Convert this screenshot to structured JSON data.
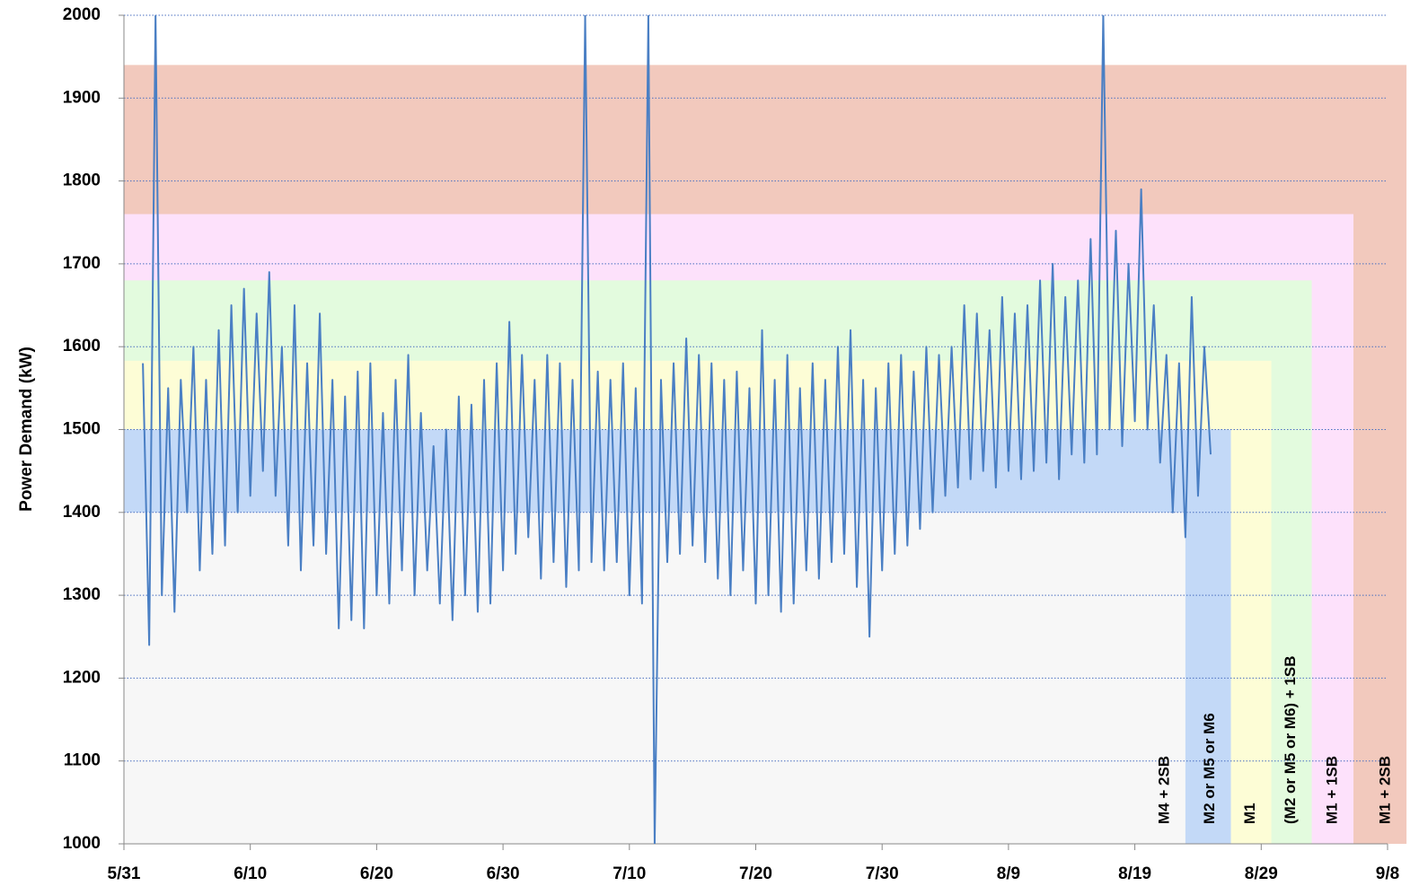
{
  "chart_data": {
    "type": "line",
    "y_label": "Power Demand (kW)",
    "xlim": [
      0,
      100
    ],
    "xticks": [
      {
        "value": 0,
        "label": "5/31"
      },
      {
        "value": 10,
        "label": "6/10"
      },
      {
        "value": 20,
        "label": "6/20"
      },
      {
        "value": 30,
        "label": "6/30"
      },
      {
        "value": 40,
        "label": "7/10"
      },
      {
        "value": 50,
        "label": "7/20"
      },
      {
        "value": 60,
        "label": "7/30"
      },
      {
        "value": 70,
        "label": "8/9"
      },
      {
        "value": 80,
        "label": "8/19"
      },
      {
        "value": 90,
        "label": "8/29"
      },
      {
        "value": 100,
        "label": "9/8"
      }
    ],
    "ylim": [
      1000,
      2000
    ],
    "yticks": [
      1000,
      1100,
      1200,
      1300,
      1400,
      1500,
      1600,
      1700,
      1800,
      1900,
      2000
    ],
    "grid": true,
    "zones": [
      {
        "label": "M1 + 2SB",
        "upper": 1940,
        "end": 101.5,
        "color": "#f2c9bd"
      },
      {
        "label": "M1 + 1SB",
        "upper": 1760,
        "end": 97.3,
        "color": "#fde1fb"
      },
      {
        "label": "(M2 or M5 or M6) + 1SB",
        "upper": 1680,
        "end": 94.0,
        "color": "#e3fbde"
      },
      {
        "label": "M1",
        "upper": 1583,
        "end": 90.8,
        "color": "#fdfdd6"
      },
      {
        "label": "M2 or M5 or M6",
        "upper": 1500,
        "end": 87.6,
        "color": "#c3d9f7"
      },
      {
        "label": "M4 + 2SB",
        "upper": 1400,
        "end": 84.0,
        "color": "#f7f7f7"
      }
    ],
    "series": [
      {
        "color": "#4a7fc4",
        "x": [
          1.5,
          2,
          2.5,
          3,
          3.5,
          4,
          4.5,
          5,
          5.5,
          6,
          6.5,
          7,
          7.5,
          8,
          8.5,
          9,
          9.5,
          10,
          10.5,
          11,
          11.5,
          12,
          12.5,
          13,
          13.5,
          14,
          14.5,
          15,
          15.5,
          16,
          16.5,
          17,
          17.5,
          18,
          18.5,
          19,
          19.5,
          20,
          20.5,
          21,
          21.5,
          22,
          22.5,
          23,
          23.5,
          24,
          24.5,
          25,
          25.5,
          26,
          26.5,
          27,
          27.5,
          28,
          28.5,
          29,
          29.5,
          30,
          30.5,
          31,
          31.5,
          32,
          32.5,
          33,
          33.5,
          34,
          34.5,
          35,
          35.5,
          36,
          36.5,
          37,
          37.5,
          38,
          38.5,
          39,
          39.5,
          40,
          40.5,
          41,
          41.5,
          42,
          42.5,
          43,
          43.5,
          44,
          44.5,
          45,
          45.5,
          46,
          46.5,
          47,
          47.5,
          48,
          48.5,
          49,
          49.5,
          50,
          50.5,
          51,
          51.5,
          52,
          52.5,
          53,
          53.5,
          54,
          54.5,
          55,
          55.5,
          56,
          56.5,
          57,
          57.5,
          58,
          58.5,
          59,
          59.5,
          60,
          60.5,
          61,
          61.5,
          62,
          62.5,
          63,
          63.5,
          64,
          64.5,
          65,
          65.5,
          66,
          66.5,
          67,
          67.5,
          68,
          68.5,
          69,
          69.5,
          70,
          70.5,
          71,
          71.5,
          72,
          72.5,
          73,
          73.5,
          74,
          74.5,
          75,
          75.5,
          76,
          76.5,
          77,
          77.5,
          78,
          78.5,
          79,
          79.5,
          80,
          80.5,
          81,
          81.5,
          82,
          82.5,
          83,
          83.5,
          84,
          84.5,
          85,
          85.5,
          86
        ],
        "values": [
          1580,
          1240,
          2000,
          1300,
          1550,
          1280,
          1560,
          1400,
          1600,
          1330,
          1560,
          1350,
          1620,
          1360,
          1650,
          1400,
          1670,
          1420,
          1640,
          1450,
          1690,
          1420,
          1600,
          1360,
          1650,
          1330,
          1580,
          1360,
          1640,
          1350,
          1560,
          1260,
          1540,
          1270,
          1570,
          1260,
          1580,
          1300,
          1520,
          1290,
          1560,
          1330,
          1590,
          1300,
          1520,
          1330,
          1480,
          1290,
          1500,
          1270,
          1540,
          1300,
          1530,
          1280,
          1560,
          1290,
          1580,
          1330,
          1630,
          1350,
          1590,
          1370,
          1560,
          1320,
          1590,
          1340,
          1580,
          1310,
          1560,
          1330,
          2000,
          1340,
          1570,
          1330,
          1560,
          1340,
          1580,
          1300,
          1550,
          1290,
          2000,
          1000,
          1560,
          1340,
          1580,
          1350,
          1610,
          1360,
          1590,
          1340,
          1580,
          1320,
          1560,
          1300,
          1570,
          1330,
          1550,
          1290,
          1620,
          1300,
          1560,
          1280,
          1590,
          1290,
          1550,
          1330,
          1580,
          1320,
          1560,
          1340,
          1600,
          1350,
          1620,
          1310,
          1560,
          1250,
          1550,
          1330,
          1580,
          1350,
          1590,
          1360,
          1570,
          1380,
          1600,
          1400,
          1590,
          1420,
          1600,
          1430,
          1650,
          1440,
          1640,
          1450,
          1620,
          1430,
          1660,
          1450,
          1640,
          1440,
          1650,
          1450,
          1680,
          1460,
          1700,
          1440,
          1660,
          1470,
          1680,
          1460,
          1730,
          1470,
          2000,
          1500,
          1740,
          1480,
          1700,
          1510,
          1790,
          1500,
          1650,
          1460,
          1590,
          1400,
          1580,
          1370,
          1660,
          1420,
          1600,
          1470
        ]
      }
    ]
  }
}
